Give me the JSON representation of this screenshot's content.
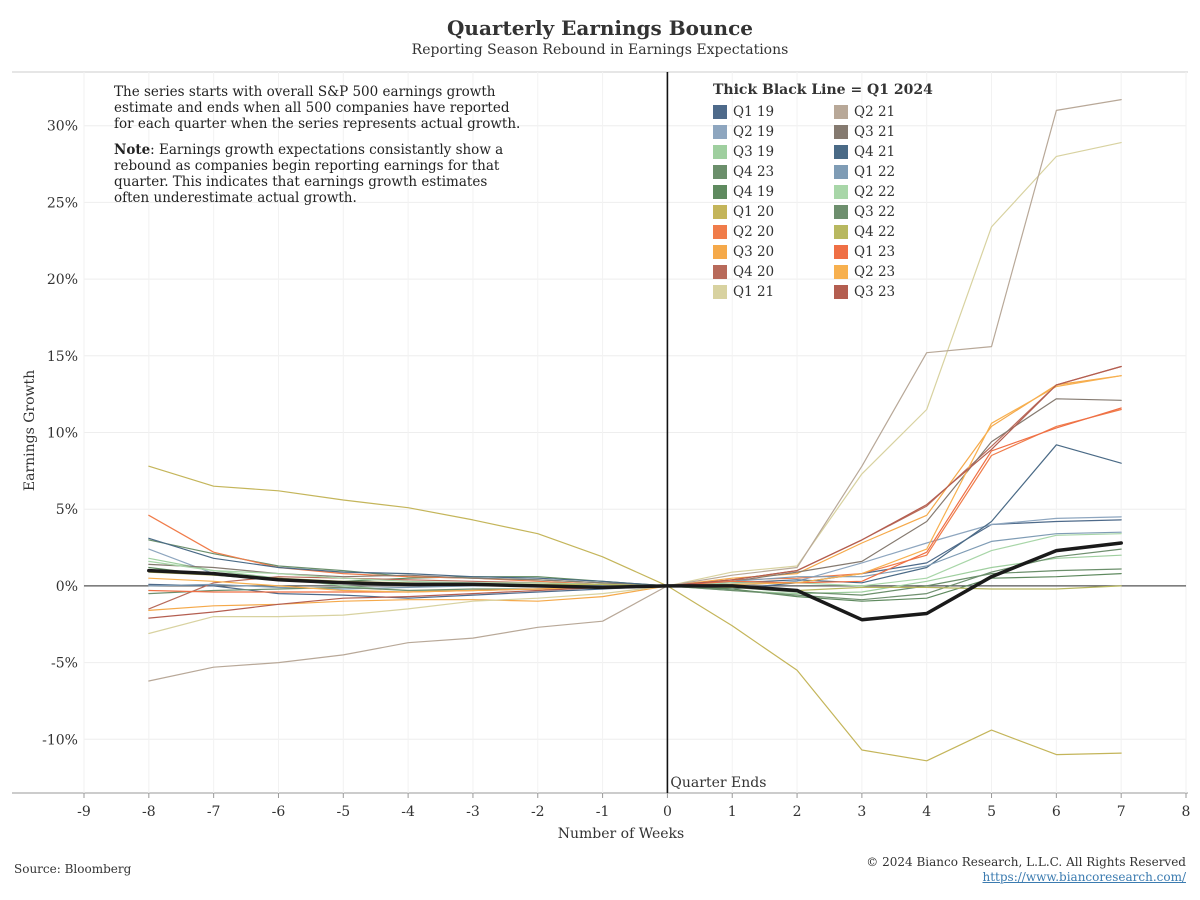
{
  "header": {
    "title": "Quarterly Earnings Bounce",
    "subtitle": "Reporting Season Rebound in Earnings Expectations"
  },
  "note": {
    "paragraph1": "The series starts with overall S&P 500 earnings growth estimate and ends when all 500 companies have reported for each quarter when the series represents actual growth.",
    "note_label": "Note",
    "paragraph2": ": Earnings growth expectations consistantly show a rebound as companies begin reporting earnings for that quarter. This indicates that earnings growth estimates often underestimate actual growth."
  },
  "footer": {
    "source": "Source: Bloomberg",
    "copyright": "© 2024 Bianco Research, L.L.C. All Rights Reserved",
    "url": "https://www.biancoresearch.com/"
  },
  "chart_data": {
    "type": "line",
    "title": "Quarterly Earnings Bounce",
    "subtitle": "Reporting Season Rebound in Earnings Expectations",
    "xlabel": "Number of Weeks",
    "ylabel": "Earnings Growth",
    "xlim": [
      -9,
      8
    ],
    "ylim": [
      -13.5,
      33.5
    ],
    "x_ticks": [
      -9,
      -8,
      -7,
      -6,
      -5,
      -4,
      -3,
      -2,
      -1,
      0,
      1,
      2,
      3,
      4,
      5,
      6,
      7,
      8
    ],
    "y_ticks": [
      -10,
      -5,
      0,
      5,
      10,
      15,
      20,
      25,
      30
    ],
    "y_tick_labels": [
      "-10%",
      "-5%",
      "0%",
      "5%",
      "10%",
      "15%",
      "20%",
      "25%",
      "30%"
    ],
    "vertical_line_label": "Quarter Ends",
    "legend_title": "Thick Black Line = Q1 2024",
    "legend_placement": "top-right",
    "grid": true,
    "x": [
      -8,
      -7,
      -6,
      -5,
      -4,
      -3,
      -2,
      -1,
      0,
      1,
      2,
      3,
      4,
      5,
      6,
      7
    ],
    "series": [
      {
        "name": "Q1 19",
        "color": "#4e6a8a",
        "values": [
          0.1,
          0.0,
          -0.5,
          -0.6,
          -0.8,
          -0.6,
          -0.4,
          -0.2,
          0,
          -0.2,
          0.2,
          0.8,
          1.5,
          4.0,
          4.2,
          4.3
        ]
      },
      {
        "name": "Q2 19",
        "color": "#8ea6bf",
        "values": [
          2.4,
          0.8,
          0.5,
          0.2,
          0.1,
          0.1,
          0.0,
          0.0,
          0,
          0.0,
          0.3,
          1.5,
          2.8,
          4.0,
          4.4,
          4.5
        ]
      },
      {
        "name": "Q3 19",
        "color": "#9fcf9f",
        "values": [
          1.8,
          1.0,
          0.5,
          0.0,
          -0.3,
          -0.3,
          -0.2,
          -0.1,
          0,
          -0.3,
          -0.5,
          -0.4,
          0.3,
          1.2,
          1.8,
          2.0
        ]
      },
      {
        "name": "Q4 23",
        "color": "#6b8f6b",
        "values": [
          3.0,
          2.1,
          1.3,
          1.0,
          0.6,
          0.5,
          0.4,
          0.2,
          0,
          -0.1,
          -0.4,
          -0.6,
          0.0,
          0.8,
          1.0,
          1.1
        ]
      },
      {
        "name": "Q4 19",
        "color": "#5f8a5f",
        "values": [
          1.2,
          0.7,
          0.4,
          0.3,
          0.5,
          0.6,
          0.6,
          0.3,
          0,
          -0.2,
          -0.7,
          -1.0,
          -0.8,
          0.5,
          0.6,
          0.8
        ]
      },
      {
        "name": "Q1 20",
        "color": "#c4b55a",
        "values": [
          7.8,
          6.5,
          6.2,
          5.6,
          5.1,
          4.3,
          3.4,
          1.9,
          0,
          -2.6,
          -5.5,
          -10.7,
          -11.4,
          -9.4,
          -11.0,
          -10.9
        ]
      },
      {
        "name": "Q2 20",
        "color": "#f07c4a",
        "values": [
          4.6,
          2.2,
          1.2,
          0.8,
          0.6,
          0.5,
          0.3,
          0.1,
          0,
          0.4,
          0.5,
          0.8,
          2.0,
          8.5,
          10.4,
          11.5
        ]
      },
      {
        "name": "Q3 20",
        "color": "#f5a94a",
        "values": [
          -1.6,
          -1.3,
          -1.2,
          -1.0,
          -0.9,
          -0.9,
          -1.0,
          -0.7,
          0,
          0.5,
          0.8,
          2.8,
          4.6,
          10.4,
          13.1,
          13.7
        ]
      },
      {
        "name": "Q4 20",
        "color": "#b86a5a",
        "values": [
          -1.5,
          0.2,
          0.6,
          0.5,
          0.4,
          0.3,
          0.2,
          0.1,
          0,
          0.4,
          1.0,
          3.0,
          5.2,
          9.1,
          13.1,
          14.3
        ]
      },
      {
        "name": "Q1 21",
        "color": "#d8d2a0",
        "values": [
          -3.1,
          -2.0,
          -2.0,
          -1.9,
          -1.5,
          -1.0,
          -0.8,
          -0.5,
          0,
          0.9,
          1.3,
          7.3,
          11.5,
          23.4,
          28.0,
          28.9
        ]
      },
      {
        "name": "Q2 21",
        "color": "#b8a898",
        "values": [
          -6.2,
          -5.3,
          -5.0,
          -4.5,
          -3.7,
          -3.4,
          -2.7,
          -2.3,
          0,
          0.7,
          1.2,
          7.8,
          15.2,
          15.6,
          31.0,
          31.7
        ]
      },
      {
        "name": "Q3 21",
        "color": "#857a70",
        "values": [
          1.4,
          1.2,
          0.8,
          0.6,
          0.7,
          0.5,
          0.4,
          0.2,
          0,
          0.3,
          0.9,
          1.6,
          4.2,
          9.4,
          12.2,
          12.1
        ]
      },
      {
        "name": "Q4 21",
        "color": "#4a6a86",
        "values": [
          3.1,
          1.8,
          1.2,
          0.9,
          0.8,
          0.6,
          0.5,
          0.3,
          0,
          0.2,
          0.4,
          0.2,
          1.2,
          4.2,
          9.2,
          8.0
        ]
      },
      {
        "name": "Q1 22",
        "color": "#7f9cb5",
        "values": [
          0.0,
          0.1,
          -0.1,
          -0.2,
          -0.1,
          0.0,
          0.0,
          0.0,
          0,
          0.3,
          0.6,
          0.6,
          1.3,
          2.9,
          3.4,
          3.5
        ]
      },
      {
        "name": "Q2 22",
        "color": "#a8d6a8",
        "values": [
          1.6,
          1.0,
          0.8,
          0.5,
          0.3,
          0.2,
          0.2,
          0.1,
          0,
          0.2,
          0.2,
          0.0,
          0.5,
          2.3,
          3.3,
          3.4
        ]
      },
      {
        "name": "Q3 22",
        "color": "#6e8f6e",
        "values": [
          -0.5,
          -0.3,
          -0.2,
          -0.1,
          -0.3,
          -0.2,
          -0.2,
          -0.1,
          0,
          -0.3,
          -0.6,
          -0.9,
          -0.5,
          0.9,
          1.9,
          2.4
        ]
      },
      {
        "name": "Q4 22",
        "color": "#b8b860",
        "values": [
          0.9,
          0.7,
          0.5,
          0.3,
          0.2,
          0.1,
          0.1,
          0.1,
          0,
          -0.1,
          -0.3,
          -0.1,
          -0.1,
          -0.2,
          -0.2,
          0.0
        ]
      },
      {
        "name": "Q1 23",
        "color": "#ef6f45",
        "values": [
          -0.3,
          -0.4,
          -0.4,
          -0.4,
          -0.4,
          -0.3,
          -0.2,
          -0.1,
          0,
          0.3,
          0.2,
          0.3,
          2.2,
          8.8,
          10.3,
          11.6
        ]
      },
      {
        "name": "Q2 23",
        "color": "#f7b04f",
        "values": [
          0.5,
          0.3,
          0.0,
          -0.3,
          -0.4,
          -0.3,
          -0.2,
          -0.1,
          0,
          0.1,
          0.2,
          0.8,
          2.4,
          10.6,
          13.0,
          13.7
        ]
      },
      {
        "name": "Q3 23",
        "color": "#b45e50",
        "values": [
          -2.1,
          -1.7,
          -1.2,
          -0.8,
          -0.7,
          -0.5,
          -0.3,
          -0.1,
          0,
          0.4,
          1.0,
          3.0,
          5.3,
          8.9,
          13.1,
          14.3
        ]
      },
      {
        "name": "Q1 2024",
        "color": "#1a1a1a",
        "thick": true,
        "values": [
          1.0,
          0.8,
          0.4,
          0.2,
          0.1,
          0.1,
          0.0,
          -0.1,
          0,
          0.0,
          -0.3,
          -2.2,
          -1.8,
          0.6,
          2.3,
          2.8
        ]
      }
    ],
    "legend": [
      {
        "name": "Q1 19",
        "color": "#4e6a8a"
      },
      {
        "name": "Q2 21",
        "color": "#b8a898"
      },
      {
        "name": "Q2 19",
        "color": "#8ea6bf"
      },
      {
        "name": "Q3 21",
        "color": "#857a70"
      },
      {
        "name": "Q3 19",
        "color": "#9fcf9f"
      },
      {
        "name": "Q4 21",
        "color": "#4a6a86"
      },
      {
        "name": "Q4 23",
        "color": "#6b8f6b"
      },
      {
        "name": "Q1 22",
        "color": "#7f9cb5"
      },
      {
        "name": "Q4 19",
        "color": "#5f8a5f"
      },
      {
        "name": "Q2 22",
        "color": "#a8d6a8"
      },
      {
        "name": "Q1 20",
        "color": "#c4b55a"
      },
      {
        "name": "Q3 22",
        "color": "#6e8f6e"
      },
      {
        "name": "Q2 20",
        "color": "#f07c4a"
      },
      {
        "name": "Q4 22",
        "color": "#b8b860"
      },
      {
        "name": "Q3 20",
        "color": "#f5a94a"
      },
      {
        "name": "Q1 23",
        "color": "#ef6f45"
      },
      {
        "name": "Q4 20",
        "color": "#b86a5a"
      },
      {
        "name": "Q2 23",
        "color": "#f7b04f"
      },
      {
        "name": "Q1 21",
        "color": "#d8d2a0"
      },
      {
        "name": "Q3 23",
        "color": "#b45e50"
      }
    ]
  }
}
